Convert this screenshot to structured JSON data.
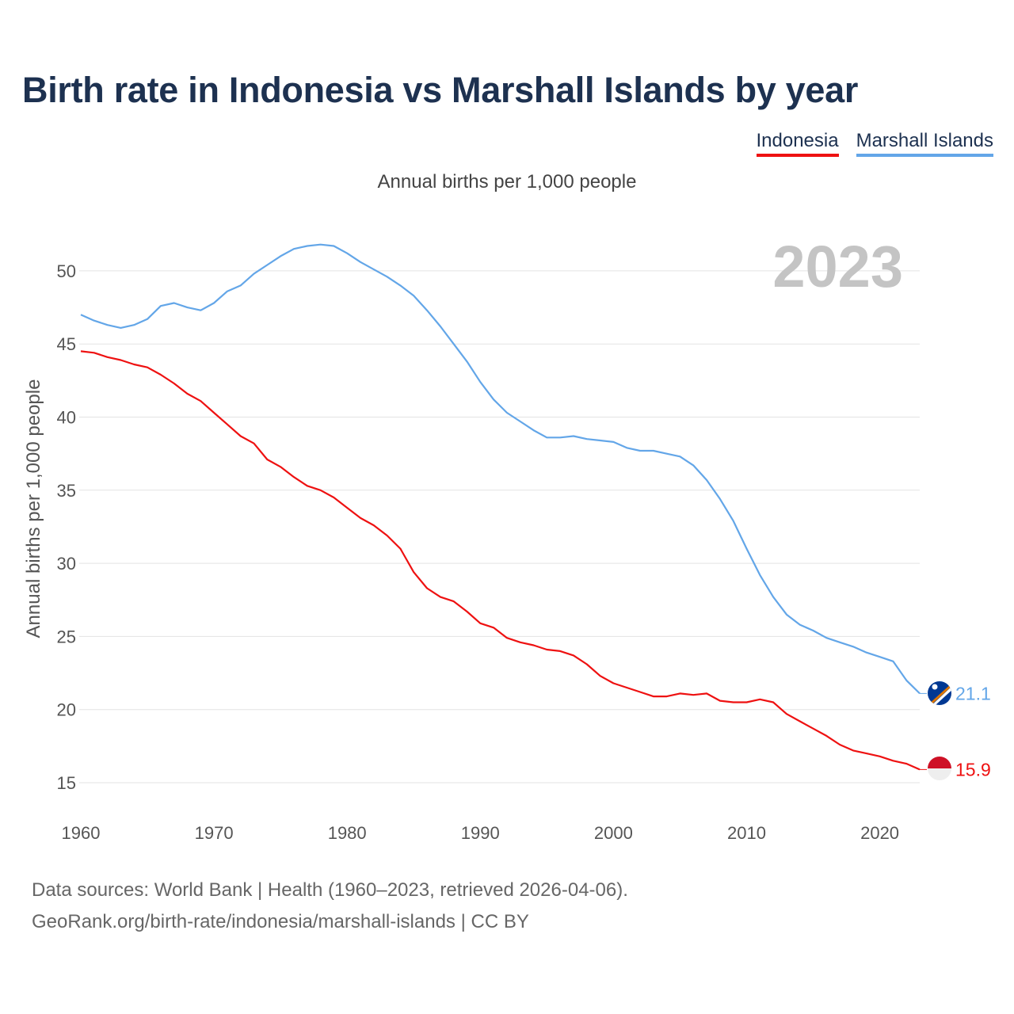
{
  "chart_data": {
    "type": "line",
    "title": "Birth rate in Indonesia vs Marshall Islands by year",
    "subtitle": "Annual births per 1,000 people",
    "ylabel": "Annual births per 1,000 people",
    "xlabel": "",
    "year_label": "2023",
    "xlim": [
      1960,
      2023
    ],
    "ylim": [
      15,
      52
    ],
    "xticks": [
      1960,
      1970,
      1980,
      1990,
      2000,
      2010,
      2020
    ],
    "yticks": [
      15,
      20,
      25,
      30,
      35,
      40,
      45,
      50
    ],
    "grid": true,
    "legend_position": "top-right",
    "x": [
      1960,
      1961,
      1962,
      1963,
      1964,
      1965,
      1966,
      1967,
      1968,
      1969,
      1970,
      1971,
      1972,
      1973,
      1974,
      1975,
      1976,
      1977,
      1978,
      1979,
      1980,
      1981,
      1982,
      1983,
      1984,
      1985,
      1986,
      1987,
      1988,
      1989,
      1990,
      1991,
      1992,
      1993,
      1994,
      1995,
      1996,
      1997,
      1998,
      1999,
      2000,
      2001,
      2002,
      2003,
      2004,
      2005,
      2006,
      2007,
      2008,
      2009,
      2010,
      2011,
      2012,
      2013,
      2014,
      2015,
      2016,
      2017,
      2018,
      2019,
      2020,
      2021,
      2022,
      2023
    ],
    "series": [
      {
        "name": "Indonesia",
        "color": "#ee1111",
        "end_label": "15.9",
        "values": [
          44.5,
          44.4,
          44.1,
          43.9,
          43.6,
          43.4,
          42.9,
          42.3,
          41.6,
          41.1,
          40.3,
          39.5,
          38.7,
          38.2,
          37.1,
          36.6,
          35.9,
          35.3,
          35.0,
          34.5,
          33.8,
          33.1,
          32.6,
          31.9,
          31.0,
          29.4,
          28.3,
          27.7,
          27.4,
          26.7,
          25.9,
          25.6,
          24.9,
          24.6,
          24.4,
          24.1,
          24.0,
          23.7,
          23.1,
          22.3,
          21.8,
          21.5,
          21.2,
          20.9,
          20.9,
          21.1,
          21.0,
          21.1,
          20.6,
          20.5,
          20.5,
          20.7,
          20.5,
          19.7,
          19.2,
          18.7,
          18.2,
          17.6,
          17.2,
          17.0,
          16.8,
          16.5,
          16.3,
          15.9
        ]
      },
      {
        "name": "Marshall Islands",
        "color": "#63a6e8",
        "end_label": "21.1",
        "values": [
          47.0,
          46.6,
          46.3,
          46.1,
          46.3,
          46.7,
          47.6,
          47.8,
          47.5,
          47.3,
          47.8,
          48.6,
          49.0,
          49.8,
          50.4,
          51.0,
          51.5,
          51.7,
          51.8,
          51.7,
          51.2,
          50.6,
          50.1,
          49.6,
          49.0,
          48.3,
          47.3,
          46.2,
          45.0,
          43.8,
          42.4,
          41.2,
          40.3,
          39.7,
          39.1,
          38.6,
          38.6,
          38.7,
          38.5,
          38.4,
          38.3,
          37.9,
          37.7,
          37.7,
          37.5,
          37.3,
          36.7,
          35.7,
          34.4,
          32.9,
          31.0,
          29.2,
          27.7,
          26.5,
          25.8,
          25.4,
          24.9,
          24.6,
          24.3,
          23.9,
          23.6,
          23.3,
          22.0,
          21.1
        ]
      }
    ]
  },
  "legend": {
    "indonesia": "Indonesia",
    "marshall": "Marshall Islands"
  },
  "footer": {
    "line1": "Data sources: World Bank | Health (1960–2023, retrieved 2026-04-06).",
    "line2": "GeoRank.org/birth-rate/indonesia/marshall-islands | CC BY"
  }
}
